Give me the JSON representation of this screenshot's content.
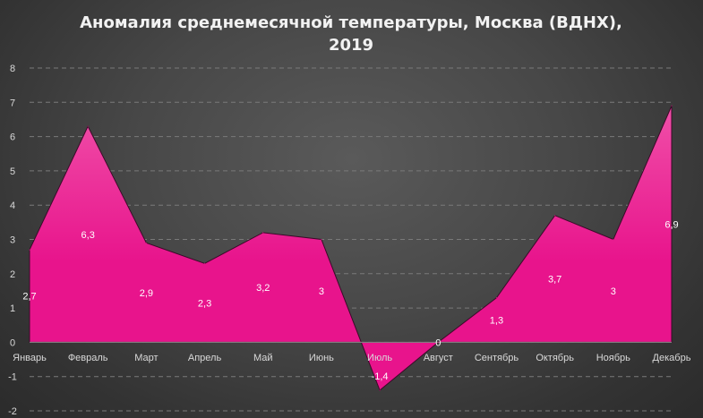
{
  "chart_data": {
    "type": "area",
    "title_lines": [
      "Аномалия среднемесячной температуры, Москва (ВДНХ),",
      "2019"
    ],
    "categories": [
      "Январь",
      "Февраль",
      "Март",
      "Апрель",
      "Май",
      "Июнь",
      "Июль",
      "Август",
      "Сентябрь",
      "Октябрь",
      "Ноябрь",
      "Декабрь"
    ],
    "values": [
      2.7,
      6.3,
      2.9,
      2.3,
      3.2,
      3,
      -1.4,
      0,
      1.3,
      3.7,
      3,
      6.9
    ],
    "data_labels": [
      "2,7",
      "6,3",
      "2,9",
      "2,3",
      "3,2",
      "3",
      "-1,4",
      "0",
      "1,3",
      "3,7",
      "3",
      "6,9"
    ],
    "y_ticks": [
      "8",
      "7",
      "6",
      "5",
      "4",
      "3",
      "2",
      "1",
      "0",
      "-1",
      "-2"
    ],
    "ylim": [
      -2,
      8
    ],
    "grid": "horizontal dashed",
    "legend": "none",
    "xlabel": "",
    "ylabel": "",
    "colors": {
      "fill_top": "#f04fa8",
      "fill_bottom": "#e8148c",
      "stroke": "#3a0a28",
      "gridline": "#7a7a7a",
      "axis_text": "#d9d9d9",
      "title": "#f2f2f2",
      "data_label": "#ffffff"
    }
  }
}
